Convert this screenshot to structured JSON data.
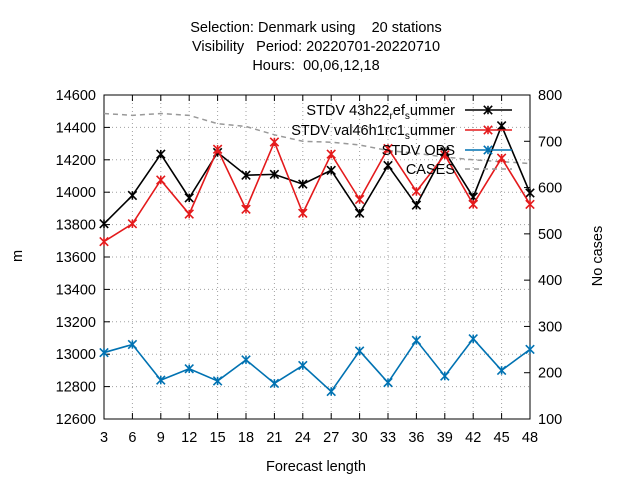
{
  "chart_data": {
    "type": "line",
    "title_lines": [
      "Selection: Denmark using    20 stations",
      "Visibility   Period: 20220701-20220710",
      "Hours:  00,06,12,18"
    ],
    "xlabel": "Forecast length",
    "ylabel": "m",
    "y2label": "No cases",
    "x": [
      3,
      6,
      9,
      12,
      15,
      18,
      21,
      24,
      27,
      30,
      33,
      36,
      39,
      42,
      45,
      48
    ],
    "xlim": [
      3,
      48
    ],
    "ylim": [
      12600,
      14600
    ],
    "y2lim": [
      100,
      800
    ],
    "y_ticks": [
      12600,
      12800,
      13000,
      13200,
      13400,
      13600,
      13800,
      14000,
      14200,
      14400,
      14600
    ],
    "y2_ticks": [
      100,
      200,
      300,
      400,
      500,
      600,
      700,
      800
    ],
    "grid": true,
    "legend_position": "top-right",
    "series": [
      {
        "name": "STDV 43h22_ref_summer",
        "legend_label": {
          "pre": "STDV 43h22",
          "sub1": "r",
          "mid": "ef",
          "sub2": "s",
          "post": "ummer"
        },
        "color": "#000000",
        "axis": "left",
        "marker": "x",
        "values": [
          13805,
          13980,
          14235,
          13965,
          14245,
          14105,
          14110,
          14050,
          14135,
          13870,
          14165,
          13920,
          14250,
          13970,
          14410,
          13995
        ]
      },
      {
        "name": "STDV val46h1rc1_summer",
        "legend_label": {
          "pre": "STDV val46h1rc1",
          "sub1": "",
          "mid": "",
          "sub2": "s",
          "post": "ummer"
        },
        "color": "#e41a1c",
        "axis": "left",
        "marker": "x",
        "values": [
          13695,
          13805,
          14075,
          13865,
          14265,
          13895,
          14310,
          13870,
          14235,
          13955,
          14270,
          14005,
          14230,
          13925,
          14210,
          13925
        ]
      },
      {
        "name": "STDV OBS",
        "legend_label": {
          "pre": "STDV OBS",
          "sub1": "",
          "mid": "",
          "sub2": "",
          "post": ""
        },
        "color": "#0072b2",
        "axis": "left",
        "marker": "x",
        "values": [
          13010,
          13060,
          12840,
          12910,
          12835,
          12965,
          12820,
          12930,
          12770,
          13020,
          12825,
          13085,
          12865,
          13095,
          12900,
          13030
        ]
      },
      {
        "name": "CASES",
        "legend_label": {
          "pre": "CASES",
          "sub1": "",
          "mid": "",
          "sub2": "",
          "post": ""
        },
        "color": "#999999",
        "axis": "right",
        "dashed": true,
        "values": [
          760,
          756,
          760,
          756,
          738,
          732,
          714,
          700,
          698,
          692,
          680,
          674,
          666,
          660,
          656,
          652
        ]
      }
    ]
  }
}
